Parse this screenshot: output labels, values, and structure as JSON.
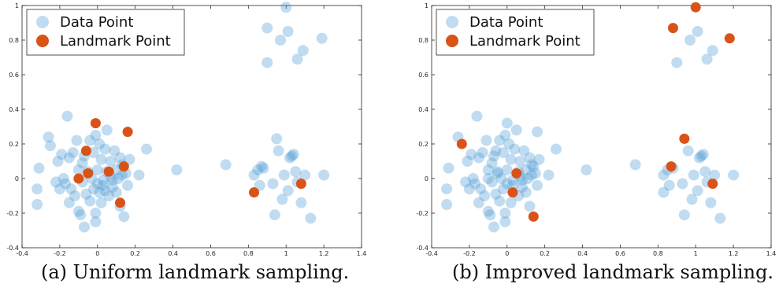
{
  "colors": {
    "data_point": "#4d9ad4",
    "landmark_point": "#d95319"
  },
  "chart_data": [
    {
      "type": "scatter",
      "caption": "(a) Uniform landmark sampling.",
      "xlim": [
        -0.4,
        1.4
      ],
      "ylim": [
        -0.4,
        1.0
      ],
      "xticks": [
        "-0.4",
        "-0.2",
        "0",
        "0.2",
        "0.4",
        "0.6",
        "0.8",
        "1",
        "1.2",
        "1.4"
      ],
      "yticks": [
        "-0.4",
        "-0.2",
        "0",
        "0.2",
        "0.4",
        "0.6",
        "0.8",
        "1"
      ],
      "grid": false,
      "legend_position": "top-left",
      "series": [
        {
          "name": "Data Point",
          "points": [
            [
              -0.32,
              -0.15
            ],
            [
              -0.32,
              -0.06
            ],
            [
              -0.31,
              0.06
            ],
            [
              -0.26,
              0.24
            ],
            [
              -0.25,
              0.19
            ],
            [
              -0.22,
              -0.02
            ],
            [
              -0.21,
              0.1
            ],
            [
              -0.2,
              -0.06
            ],
            [
              -0.19,
              0.14
            ],
            [
              -0.18,
              0.0
            ],
            [
              -0.17,
              -0.03
            ],
            [
              -0.16,
              0.36
            ],
            [
              -0.15,
              0.12
            ],
            [
              -0.15,
              -0.14
            ],
            [
              -0.14,
              -0.06
            ],
            [
              -0.13,
              0.15
            ],
            [
              -0.12,
              -0.1
            ],
            [
              -0.11,
              0.22
            ],
            [
              -0.1,
              -0.19
            ],
            [
              -0.1,
              0.05
            ],
            [
              -0.09,
              -0.21
            ],
            [
              -0.08,
              0.09
            ],
            [
              -0.08,
              -0.02
            ],
            [
              -0.07,
              -0.28
            ],
            [
              -0.07,
              0.13
            ],
            [
              -0.06,
              -0.09
            ],
            [
              -0.05,
              0.04
            ],
            [
              -0.04,
              0.22
            ],
            [
              -0.04,
              -0.13
            ],
            [
              -0.03,
              0.0
            ],
            [
              -0.02,
              -0.06
            ],
            [
              -0.02,
              0.15
            ],
            [
              -0.01,
              -0.25
            ],
            [
              -0.01,
              0.25
            ],
            [
              0.0,
              -0.03
            ],
            [
              0.0,
              0.05
            ],
            [
              0.01,
              0.2
            ],
            [
              0.01,
              -0.08
            ],
            [
              0.02,
              0.11
            ],
            [
              0.02,
              -0.14
            ],
            [
              0.03,
              -0.01
            ],
            [
              0.04,
              0.17
            ],
            [
              0.04,
              -0.07
            ],
            [
              0.05,
              0.04
            ],
            [
              0.05,
              0.28
            ],
            [
              0.06,
              -0.1
            ],
            [
              0.07,
              0.01
            ],
            [
              0.07,
              0.1
            ],
            [
              0.08,
              -0.05
            ],
            [
              0.09,
              0.16
            ],
            [
              0.1,
              -0.08
            ],
            [
              0.1,
              0.05
            ],
            [
              0.11,
              0.0
            ],
            [
              0.12,
              0.12
            ],
            [
              0.12,
              -0.16
            ],
            [
              0.13,
              0.08
            ],
            [
              0.14,
              -0.22
            ],
            [
              0.15,
              0.03
            ],
            [
              0.16,
              -0.04
            ],
            [
              0.17,
              0.11
            ],
            [
              0.22,
              0.02
            ],
            [
              0.26,
              0.17
            ],
            [
              -0.01,
              -0.2
            ],
            [
              0.03,
              -0.04
            ],
            [
              0.08,
              -0.01
            ],
            [
              0.13,
              0.02
            ],
            [
              0.42,
              0.05
            ],
            [
              0.68,
              0.08
            ],
            [
              0.83,
              0.02
            ],
            [
              0.85,
              0.05
            ],
            [
              0.86,
              -0.04
            ],
            [
              0.87,
              0.07
            ],
            [
              0.88,
              0.06
            ],
            [
              0.93,
              -0.03
            ],
            [
              0.94,
              -0.21
            ],
            [
              0.95,
              0.23
            ],
            [
              0.96,
              0.16
            ],
            [
              0.98,
              -0.12
            ],
            [
              0.99,
              0.02
            ],
            [
              1.01,
              -0.07
            ],
            [
              1.02,
              0.12
            ],
            [
              1.03,
              0.13
            ],
            [
              1.04,
              0.14
            ],
            [
              1.05,
              0.04
            ],
            [
              1.06,
              -0.02
            ],
            [
              1.08,
              -0.14
            ],
            [
              1.1,
              0.02
            ],
            [
              1.13,
              -0.23
            ],
            [
              1.2,
              0.02
            ],
            [
              0.9,
              0.87
            ],
            [
              0.9,
              0.67
            ],
            [
              0.97,
              0.8
            ],
            [
              1.0,
              0.99
            ],
            [
              1.01,
              0.85
            ],
            [
              1.06,
              0.69
            ],
            [
              1.09,
              0.74
            ],
            [
              1.19,
              0.81
            ]
          ]
        },
        {
          "name": "Landmark Point",
          "points": [
            [
              -0.01,
              0.32
            ],
            [
              0.16,
              0.27
            ],
            [
              -0.06,
              0.16
            ],
            [
              0.14,
              0.07
            ],
            [
              0.06,
              0.04
            ],
            [
              -0.05,
              0.03
            ],
            [
              -0.1,
              0.0
            ],
            [
              0.12,
              -0.14
            ],
            [
              0.83,
              -0.08
            ],
            [
              1.08,
              -0.03
            ]
          ]
        }
      ]
    },
    {
      "type": "scatter",
      "caption": "(b) Improved landmark sampling.",
      "xlim": [
        -0.4,
        1.4
      ],
      "ylim": [
        -0.4,
        1.0
      ],
      "xticks": [
        "-0.4",
        "-0.2",
        "0",
        "0.2",
        "0.4",
        "0.6",
        "0.8",
        "1",
        "1.2",
        "1.4"
      ],
      "yticks": [
        "-0.4",
        "-0.2",
        "0",
        "0.2",
        "0.4",
        "0.6",
        "0.8",
        "1"
      ],
      "grid": false,
      "legend_position": "top-left",
      "series": [
        {
          "name": "Data Point",
          "points": [
            [
              -0.32,
              -0.15
            ],
            [
              -0.32,
              -0.06
            ],
            [
              -0.31,
              0.06
            ],
            [
              -0.26,
              0.24
            ],
            [
              -0.22,
              -0.02
            ],
            [
              -0.21,
              0.1
            ],
            [
              -0.2,
              -0.06
            ],
            [
              -0.19,
              0.14
            ],
            [
              -0.18,
              0.0
            ],
            [
              -0.17,
              -0.03
            ],
            [
              -0.16,
              0.36
            ],
            [
              -0.15,
              0.12
            ],
            [
              -0.15,
              -0.14
            ],
            [
              -0.14,
              -0.06
            ],
            [
              -0.13,
              0.15
            ],
            [
              -0.12,
              -0.1
            ],
            [
              -0.11,
              0.22
            ],
            [
              -0.1,
              -0.19
            ],
            [
              -0.1,
              0.05
            ],
            [
              -0.09,
              -0.21
            ],
            [
              -0.08,
              0.09
            ],
            [
              -0.08,
              -0.02
            ],
            [
              -0.07,
              -0.28
            ],
            [
              -0.07,
              0.13
            ],
            [
              -0.06,
              -0.09
            ],
            [
              -0.05,
              0.04
            ],
            [
              -0.04,
              0.22
            ],
            [
              -0.04,
              -0.13
            ],
            [
              -0.03,
              0.0
            ],
            [
              -0.02,
              -0.06
            ],
            [
              -0.02,
              0.15
            ],
            [
              -0.01,
              -0.25
            ],
            [
              -0.01,
              0.25
            ],
            [
              0.0,
              -0.03
            ],
            [
              0.0,
              0.05
            ],
            [
              0.01,
              0.2
            ],
            [
              0.02,
              0.11
            ],
            [
              0.02,
              -0.14
            ],
            [
              0.03,
              -0.01
            ],
            [
              0.04,
              0.17
            ],
            [
              0.05,
              0.28
            ],
            [
              0.06,
              -0.1
            ],
            [
              0.07,
              0.01
            ],
            [
              0.07,
              0.1
            ],
            [
              0.08,
              -0.05
            ],
            [
              0.09,
              0.16
            ],
            [
              0.1,
              -0.08
            ],
            [
              0.1,
              0.05
            ],
            [
              0.11,
              0.0
            ],
            [
              0.12,
              0.12
            ],
            [
              0.12,
              -0.16
            ],
            [
              0.13,
              0.08
            ],
            [
              0.15,
              0.03
            ],
            [
              0.16,
              -0.04
            ],
            [
              0.17,
              0.11
            ],
            [
              0.22,
              0.02
            ],
            [
              0.26,
              0.17
            ],
            [
              -0.01,
              -0.2
            ],
            [
              0.03,
              -0.04
            ],
            [
              0.08,
              -0.01
            ],
            [
              0.13,
              0.02
            ],
            [
              0.0,
              0.32
            ],
            [
              0.16,
              0.27
            ],
            [
              -0.06,
              0.16
            ],
            [
              0.14,
              0.07
            ],
            [
              0.06,
              0.04
            ],
            [
              -0.05,
              0.03
            ],
            [
              -0.1,
              0.0
            ],
            [
              0.42,
              0.05
            ],
            [
              0.68,
              0.08
            ],
            [
              0.83,
              0.02
            ],
            [
              0.85,
              0.05
            ],
            [
              0.86,
              -0.04
            ],
            [
              0.88,
              0.06
            ],
            [
              0.93,
              -0.03
            ],
            [
              0.94,
              -0.21
            ],
            [
              0.96,
              0.16
            ],
            [
              0.98,
              -0.12
            ],
            [
              0.99,
              0.02
            ],
            [
              1.01,
              -0.07
            ],
            [
              1.02,
              0.12
            ],
            [
              1.03,
              0.13
            ],
            [
              1.04,
              0.14
            ],
            [
              1.05,
              0.04
            ],
            [
              1.06,
              -0.02
            ],
            [
              1.08,
              -0.14
            ],
            [
              1.1,
              0.02
            ],
            [
              1.13,
              -0.23
            ],
            [
              1.2,
              0.02
            ],
            [
              0.83,
              -0.08
            ],
            [
              0.9,
              0.67
            ],
            [
              0.97,
              0.8
            ],
            [
              1.01,
              0.85
            ],
            [
              1.06,
              0.69
            ],
            [
              1.09,
              0.74
            ]
          ]
        },
        {
          "name": "Landmark Point",
          "points": [
            [
              -0.24,
              0.2
            ],
            [
              0.05,
              0.03
            ],
            [
              0.03,
              -0.08
            ],
            [
              0.14,
              -0.22
            ],
            [
              0.87,
              0.07
            ],
            [
              0.94,
              0.23
            ],
            [
              1.09,
              -0.03
            ],
            [
              0.88,
              0.87
            ],
            [
              1.0,
              0.99
            ],
            [
              1.18,
              0.81
            ]
          ]
        }
      ]
    }
  ]
}
